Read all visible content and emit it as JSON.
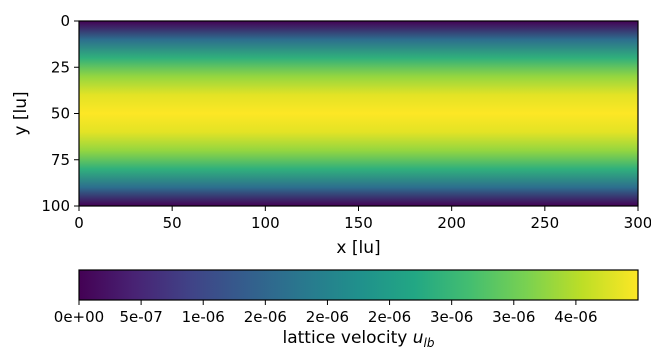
{
  "chart_data": {
    "type": "heatmap",
    "description_values": "Parabolic velocity profile across channel height; uniform along x",
    "xlabel": "x [lu]",
    "ylabel": "y [lu]",
    "xlim": [
      0,
      300
    ],
    "ylim": [
      100,
      0
    ],
    "x_ticks": [
      0,
      50,
      100,
      150,
      200,
      250,
      300
    ],
    "y_ticks": [
      0,
      25,
      50,
      75,
      100
    ],
    "colormap": "viridis",
    "profile": {
      "y": [
        0,
        10,
        20,
        30,
        40,
        50,
        60,
        70,
        80,
        90,
        100
      ],
      "u": [
        0,
        1.62e-06,
        2.88e-06,
        3.78e-06,
        4.32e-06,
        4.5e-06,
        4.32e-06,
        3.78e-06,
        2.88e-06,
        1.62e-06,
        0
      ]
    },
    "colorbar": {
      "label_main": "lattice velocity ",
      "label_symbol": "u",
      "label_sub": "lb",
      "vmin": 0,
      "vmax": 4.5e-06,
      "ticks": [
        {
          "value": 0,
          "label": "0e+00"
        },
        {
          "value": 5e-07,
          "label": "5e-07"
        },
        {
          "value": 1e-06,
          "label": "1e-06"
        },
        {
          "value": 1.5e-06,
          "label": "2e-06"
        },
        {
          "value": 2e-06,
          "label": "2e-06"
        },
        {
          "value": 2.5e-06,
          "label": "2e-06"
        },
        {
          "value": 3e-06,
          "label": "3e-06"
        },
        {
          "value": 3.5e-06,
          "label": "3e-06"
        },
        {
          "value": 4e-06,
          "label": "4e-06"
        }
      ]
    }
  }
}
